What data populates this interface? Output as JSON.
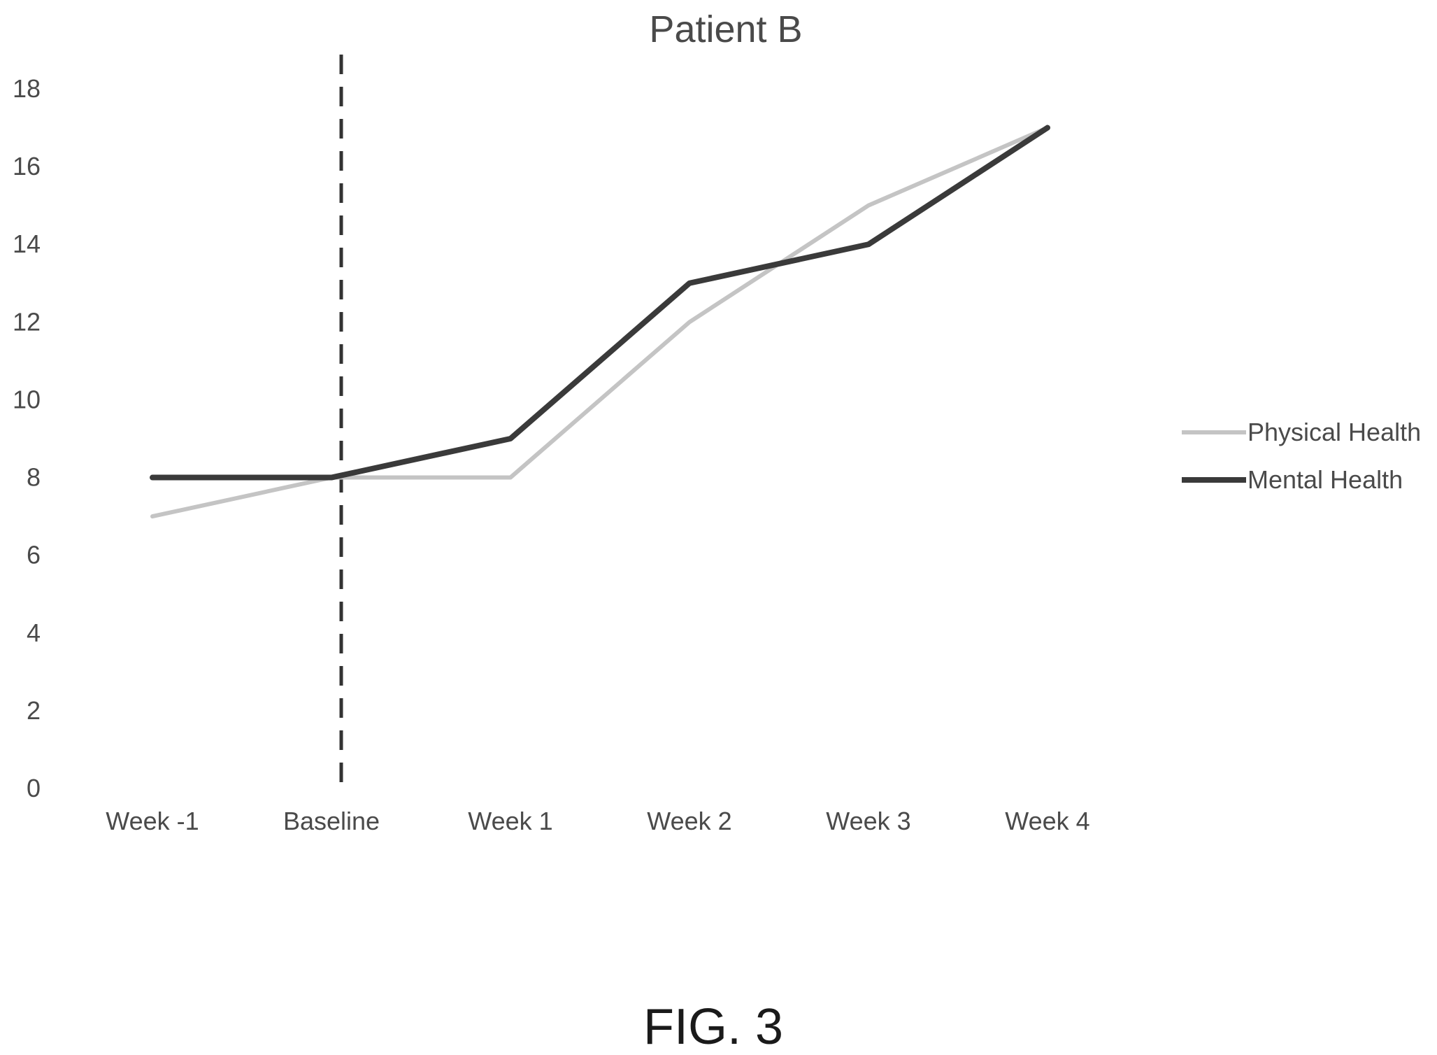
{
  "chart_data": {
    "type": "line",
    "title": "Patient B",
    "xlabel": "",
    "ylabel": "",
    "categories": [
      "Week -1",
      "Baseline",
      "Week 1",
      "Week 2",
      "Week 3",
      "Week 4"
    ],
    "ylim": [
      0,
      18
    ],
    "yticks": [
      0,
      2,
      4,
      6,
      8,
      10,
      12,
      14,
      16,
      18
    ],
    "grid": false,
    "legend": "right",
    "vertical_marker": {
      "category": "Baseline",
      "style": "dashed"
    },
    "series": [
      {
        "name": "Physical Health",
        "values": [
          7,
          8,
          8,
          12,
          15,
          17
        ],
        "color": "#c4c4c4"
      },
      {
        "name": "Mental Health",
        "values": [
          8,
          8,
          9,
          13,
          14,
          17
        ],
        "color": "#3a3a3a"
      }
    ]
  },
  "caption": "FIG. 3"
}
